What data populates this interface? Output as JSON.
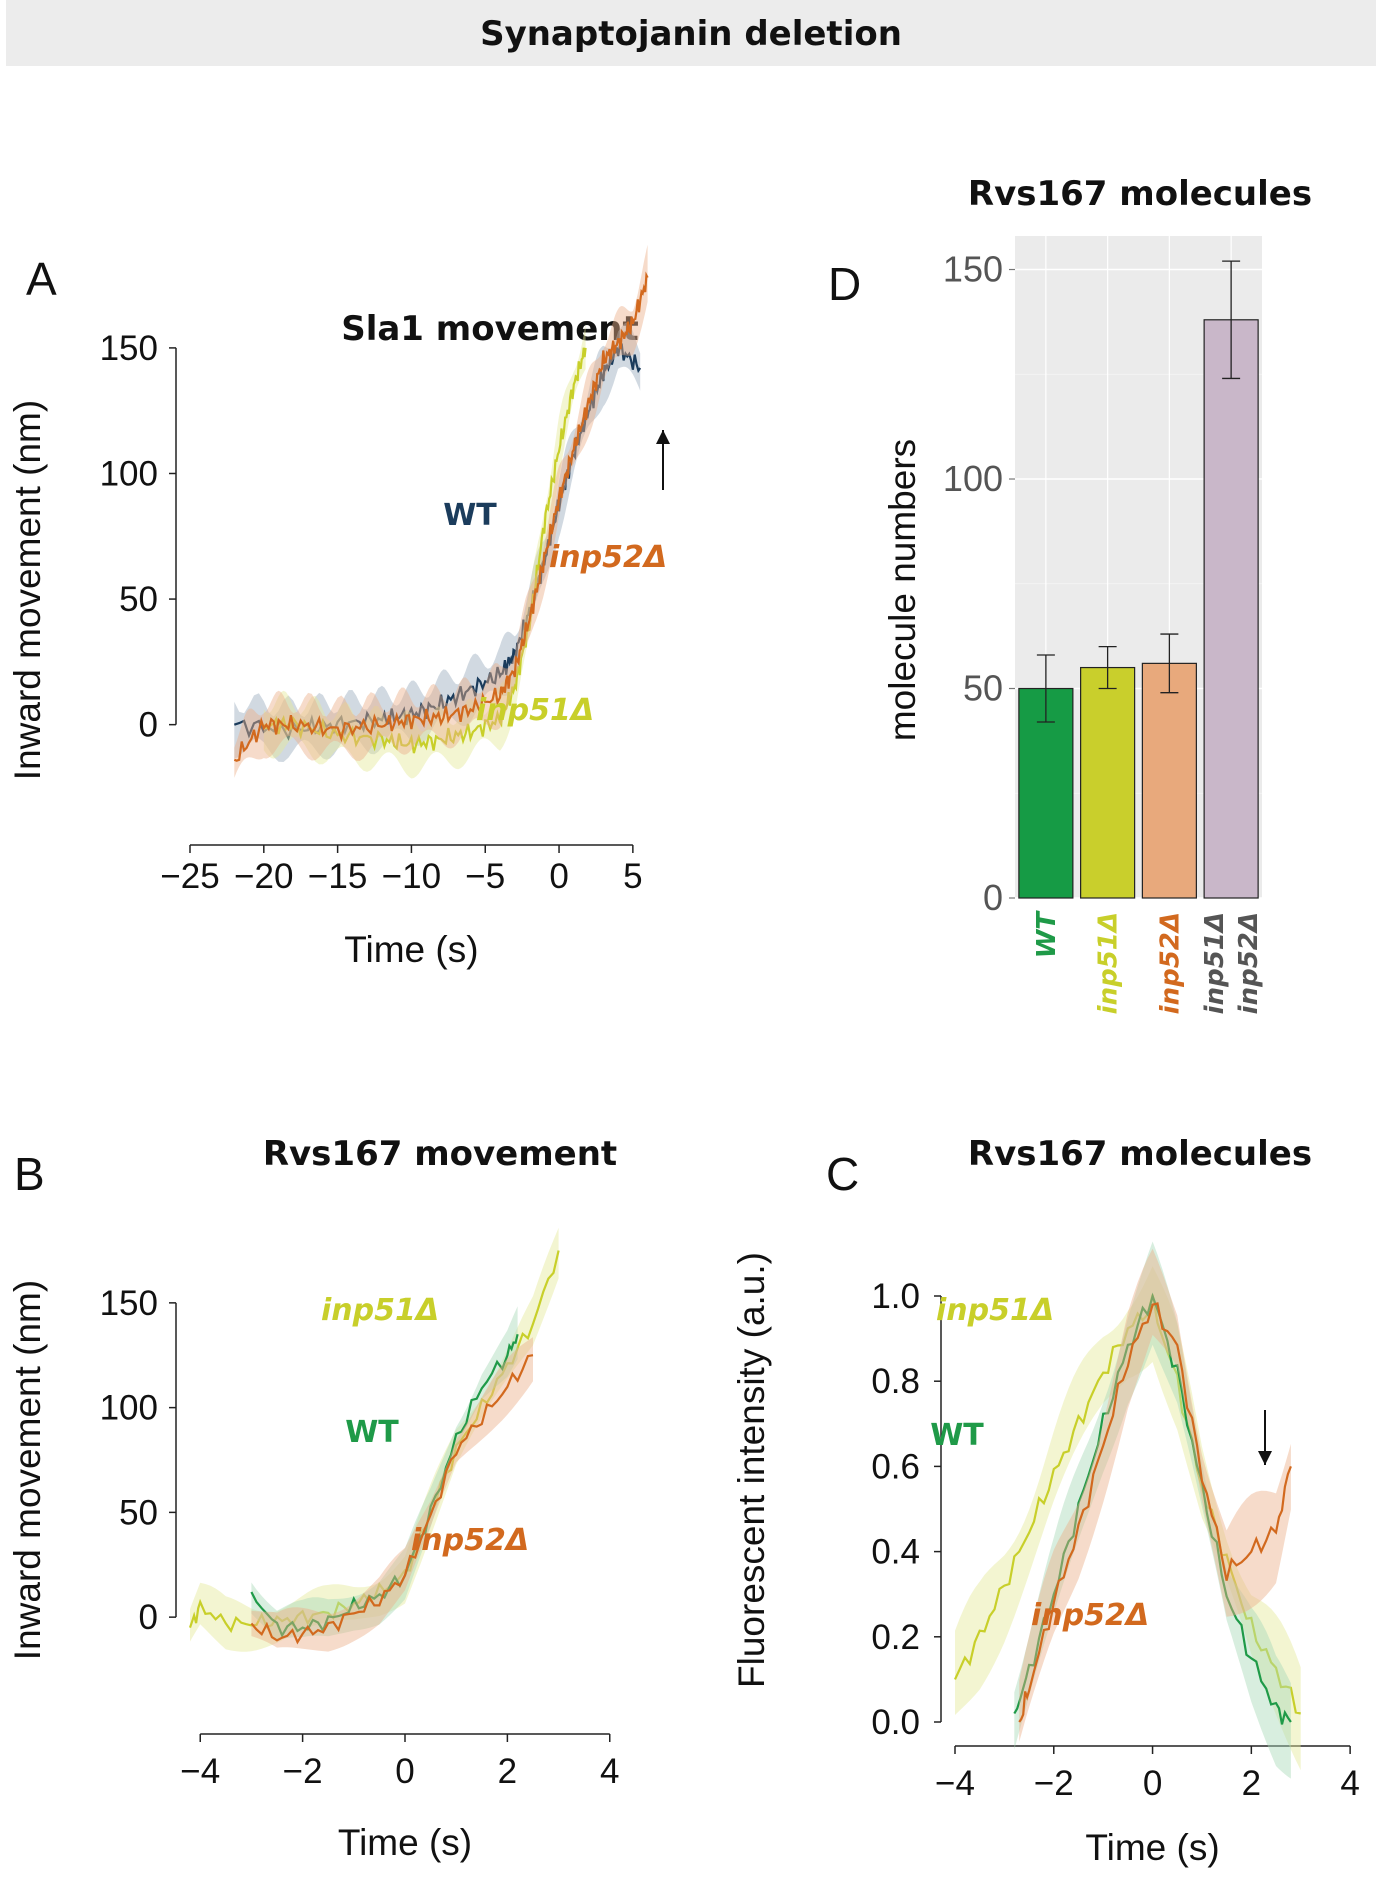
{
  "banner": {
    "title": "Synaptojanin deletion"
  },
  "chart_data": [
    {
      "panel": "A",
      "type": "line",
      "title": "Sla1 movement",
      "xlabel": "Time (s)",
      "ylabel": "Inward movement (nm)",
      "xlim": [
        -25,
        6.5
      ],
      "ylim": [
        -30,
        185
      ],
      "xticks": [
        "−25",
        "−20",
        "−15",
        "−10",
        "−5",
        "0",
        "5"
      ],
      "xtick_values": [
        -25,
        -20,
        -15,
        -10,
        -5,
        0,
        5
      ],
      "yticks": [
        "0",
        "50",
        "100",
        "150"
      ],
      "ytick_values": [
        0,
        50,
        100,
        150
      ],
      "annotation": "arrow-up",
      "series": [
        {
          "name": "WT",
          "color": "#1b3c5c",
          "band": "#9aaabc",
          "x": [
            -22,
            -18,
            -15,
            -12,
            -10,
            -8,
            -6,
            -4,
            -3,
            -2,
            -1,
            0,
            1,
            2,
            3,
            4,
            5.5
          ],
          "y": [
            0,
            -2,
            0,
            2,
            4,
            8,
            14,
            20,
            28,
            45,
            65,
            88,
            108,
            125,
            140,
            150,
            142
          ]
        },
        {
          "name": "inp51Δ",
          "color": "#c8cf2a",
          "band": "#e5e89a",
          "x": [
            -20,
            -18,
            -15,
            -12,
            -10,
            -8,
            -6,
            -4,
            -3,
            -2,
            -1,
            0,
            1,
            1.8
          ],
          "y": [
            0,
            0,
            -4,
            -6,
            -8,
            -6,
            -3,
            2,
            15,
            40,
            80,
            110,
            135,
            150
          ]
        },
        {
          "name": "inp52Δ",
          "color": "#d2691e",
          "band": "#eab08a",
          "x": [
            -22,
            -20,
            -18,
            -15,
            -12,
            -10,
            -8,
            -6,
            -4,
            -3,
            -2,
            -1,
            0,
            1,
            2,
            3,
            4,
            5,
            6
          ],
          "y": [
            -14,
            0,
            0,
            -2,
            0,
            2,
            3,
            6,
            12,
            22,
            42,
            66,
            90,
            110,
            128,
            145,
            152,
            160,
            178
          ]
        }
      ],
      "labels": [
        {
          "text": "WT",
          "color": "#1b3c5c",
          "italic": false
        },
        {
          "text": "inp52Δ",
          "color": "#d2691e",
          "italic": true
        },
        {
          "text": "inp51Δ",
          "color": "#c8cf2a",
          "italic": true
        }
      ]
    },
    {
      "panel": "B",
      "type": "line",
      "title": "Rvs167 movement",
      "xlabel": "Time (s)",
      "ylabel": "Inward movement (nm)",
      "xlim": [
        -4.2,
        4.2
      ],
      "ylim": [
        -30,
        180
      ],
      "xticks": [
        "−4",
        "−2",
        "0",
        "2",
        "4"
      ],
      "xtick_values": [
        -4,
        -2,
        0,
        2,
        4
      ],
      "yticks": [
        "0",
        "50",
        "100",
        "150"
      ],
      "ytick_values": [
        0,
        50,
        100,
        150
      ],
      "series": [
        {
          "name": "inp51Δ",
          "color": "#c8cf2a",
          "band": "#e5e89a",
          "x": [
            -4.2,
            -4,
            -3.5,
            -3,
            -2.5,
            -2,
            -1.5,
            -1,
            -0.5,
            0,
            0.5,
            1,
            1.5,
            2,
            2.5,
            3
          ],
          "y": [
            -5,
            5,
            -3,
            -3,
            -2,
            0,
            2,
            6,
            12,
            20,
            50,
            80,
            100,
            120,
            140,
            175
          ]
        },
        {
          "name": "WT",
          "color": "#1f9a48",
          "band": "#a8dab8",
          "x": [
            -3,
            -2.5,
            -2,
            -1.5,
            -1,
            -0.5,
            0,
            0.5,
            1,
            1.5,
            2,
            2.2
          ],
          "y": [
            12,
            -5,
            -5,
            -2,
            5,
            10,
            20,
            50,
            85,
            110,
            125,
            135
          ]
        },
        {
          "name": "inp52Δ",
          "color": "#d2691e",
          "band": "#eab08a",
          "x": [
            -3,
            -2.5,
            -2,
            -1.5,
            -1,
            -0.5,
            0,
            0.5,
            1,
            1.5,
            2,
            2.5
          ],
          "y": [
            -3,
            -10,
            -8,
            -5,
            2,
            8,
            20,
            48,
            80,
            95,
            110,
            125
          ]
        }
      ],
      "labels": [
        {
          "text": "inp51Δ",
          "color": "#c8cf2a",
          "italic": true
        },
        {
          "text": "WT",
          "color": "#1f9a48",
          "italic": false
        },
        {
          "text": "inp52Δ",
          "color": "#d2691e",
          "italic": true
        }
      ]
    },
    {
      "panel": "C",
      "type": "line",
      "title": "Rvs167 molecules",
      "xlabel": "Time (s)",
      "ylabel": "Fluorescent intensity (a.u.)",
      "xlim": [
        -4,
        4.2
      ],
      "ylim": [
        0,
        1.0
      ],
      "xticks": [
        "−4",
        "−2",
        "0",
        "2",
        "4"
      ],
      "xtick_values": [
        -4,
        -2,
        0,
        2,
        4
      ],
      "yticks": [
        "0.0",
        "0.2",
        "0.4",
        "0.6",
        "0.8",
        "1.0"
      ],
      "ytick_values": [
        0,
        0.2,
        0.4,
        0.6,
        0.8,
        1.0
      ],
      "annotation": "arrow-down",
      "series": [
        {
          "name": "inp51Δ",
          "color": "#c8cf2a",
          "band": "#e5e89a",
          "x": [
            -4,
            -3.5,
            -3,
            -2.5,
            -2,
            -1.5,
            -1,
            -0.5,
            0,
            0.5,
            1,
            1.5,
            2,
            2.5,
            3
          ],
          "y": [
            0.1,
            0.2,
            0.32,
            0.45,
            0.58,
            0.7,
            0.82,
            0.92,
            0.98,
            0.8,
            0.55,
            0.38,
            0.22,
            0.12,
            0.02
          ]
        },
        {
          "name": "WT",
          "color": "#1f9a48",
          "band": "#a8dab8",
          "x": [
            -2.8,
            -2.5,
            -2,
            -1.5,
            -1,
            -0.5,
            0,
            0.5,
            1,
            1.5,
            2,
            2.5,
            2.8
          ],
          "y": [
            0.02,
            0.12,
            0.3,
            0.5,
            0.7,
            0.88,
            1.0,
            0.82,
            0.55,
            0.3,
            0.15,
            0.03,
            0.0
          ]
        },
        {
          "name": "inp52Δ",
          "color": "#d2691e",
          "band": "#eab08a",
          "x": [
            -2.7,
            -2.5,
            -2,
            -1.5,
            -1,
            -0.5,
            0,
            0.5,
            1,
            1.5,
            2,
            2.5,
            2.8
          ],
          "y": [
            0.0,
            0.08,
            0.28,
            0.45,
            0.65,
            0.85,
            0.98,
            0.88,
            0.58,
            0.35,
            0.4,
            0.45,
            0.6
          ]
        }
      ],
      "labels": [
        {
          "text": "inp51Δ",
          "color": "#c8cf2a",
          "italic": true
        },
        {
          "text": "WT",
          "color": "#1f9a48",
          "italic": false
        },
        {
          "text": "inp52Δ",
          "color": "#d2691e",
          "italic": true
        }
      ]
    },
    {
      "panel": "D",
      "type": "bar",
      "title": "Rvs167 molecules",
      "ylabel": "molecule numbers",
      "ylim": [
        0,
        158
      ],
      "yticks": [
        "0",
        "50",
        "100",
        "150"
      ],
      "ytick_values": [
        0,
        50,
        100,
        150
      ],
      "grid": true,
      "categories": [
        "WT",
        "inp51Δ",
        "inp52Δ",
        "inp51Δ inp52Δ"
      ],
      "category_lines": [
        [
          "WT"
        ],
        [
          "inp51Δ"
        ],
        [
          "inp52Δ"
        ],
        [
          "inp51Δ",
          "inp52Δ"
        ]
      ],
      "category_colors": [
        "#1f9a48",
        "#c8cf2a",
        "#d2691e",
        "#555555"
      ],
      "values": [
        50,
        55,
        56,
        138
      ],
      "errors": [
        8,
        5,
        7,
        14
      ],
      "bar_colors": [
        "#169b45",
        "#c9cf2c",
        "#e8a97c",
        "#c9b7c9"
      ]
    }
  ]
}
